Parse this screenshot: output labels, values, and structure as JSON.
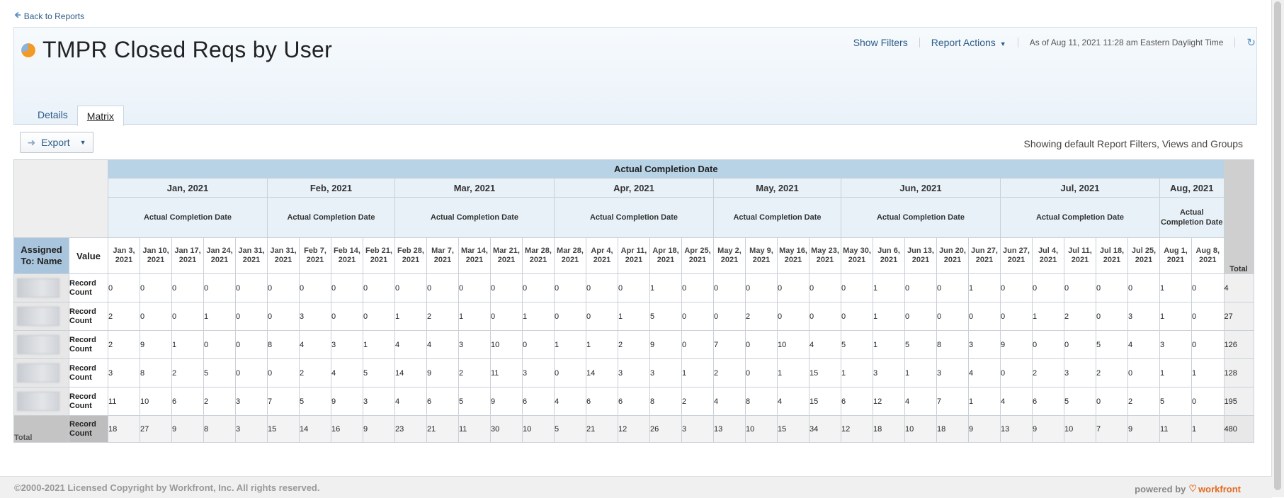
{
  "back_link": "Back to Reports",
  "report": {
    "title": "TMPR Closed Reqs by User",
    "show_filters": "Show Filters",
    "report_actions": "Report Actions",
    "as_of": "As of Aug 11, 2021 11:28 am Eastern Daylight Time"
  },
  "tabs": [
    {
      "label": "Details"
    },
    {
      "label": "Matrix",
      "active": true
    }
  ],
  "export_label": "Export",
  "showing_text": "Showing default Report Filters, Views and Groups",
  "matrix": {
    "group_header": "Actual Completion Date",
    "sub_header": "Actual Completion Date",
    "aug_sub_header": "Actual Completion Date",
    "assigned_to_label": "Assigned To: Name",
    "value_label": "Value",
    "total_col_label": "Total",
    "total_row_label": "Total",
    "record_count_label": "Record Count",
    "months": [
      {
        "label": "Jan, 2021",
        "span": 5
      },
      {
        "label": "Feb, 2021",
        "span": 4
      },
      {
        "label": "Mar, 2021",
        "span": 5
      },
      {
        "label": "Apr, 2021",
        "span": 5
      },
      {
        "label": "May, 2021",
        "span": 4
      },
      {
        "label": "Jun, 2021",
        "span": 5
      },
      {
        "label": "Jul, 2021",
        "span": 5
      },
      {
        "label": "Aug, 2021",
        "span": 2
      }
    ],
    "dates": [
      "Jan 3, 2021",
      "Jan 10, 2021",
      "Jan 17, 2021",
      "Jan 24, 2021",
      "Jan 31, 2021",
      "Jan 31, 2021",
      "Feb 7, 2021",
      "Feb 14, 2021",
      "Feb 21, 2021",
      "Feb 28, 2021",
      "Mar 7, 2021",
      "Mar 14, 2021",
      "Mar 21, 2021",
      "Mar 28, 2021",
      "Mar 28, 2021",
      "Apr 4, 2021",
      "Apr 11, 2021",
      "Apr 18, 2021",
      "Apr 25, 2021",
      "May 2, 2021",
      "May 9, 2021",
      "May 16, 2021",
      "May 23, 2021",
      "May 30, 2021",
      "Jun 6, 2021",
      "Jun 13, 2021",
      "Jun 20, 2021",
      "Jun 27, 2021",
      "Jun 27, 2021",
      "Jul 4, 2021",
      "Jul 11, 2021",
      "Jul 18, 2021",
      "Jul 25, 2021",
      "Aug 1, 2021",
      "Aug 8, 2021"
    ],
    "rows": [
      {
        "values": [
          "0",
          "0",
          "0",
          "0",
          "0",
          "0",
          "0",
          "0",
          "0",
          "0",
          "0",
          "0",
          "0",
          "0",
          "0",
          "0",
          "0",
          "1",
          "0",
          "0",
          "0",
          "0",
          "0",
          "0",
          "1",
          "0",
          "0",
          "1",
          "0",
          "0",
          "0",
          "0",
          "0",
          "1",
          "0"
        ],
        "total": "4"
      },
      {
        "values": [
          "2",
          "0",
          "0",
          "1",
          "0",
          "0",
          "3",
          "0",
          "0",
          "1",
          "2",
          "1",
          "0",
          "1",
          "0",
          "0",
          "1",
          "5",
          "0",
          "0",
          "2",
          "0",
          "0",
          "0",
          "1",
          "0",
          "0",
          "0",
          "0",
          "1",
          "2",
          "0",
          "3",
          "1",
          "0"
        ],
        "total": "27"
      },
      {
        "values": [
          "2",
          "9",
          "1",
          "0",
          "0",
          "8",
          "4",
          "3",
          "1",
          "4",
          "4",
          "3",
          "10",
          "0",
          "1",
          "1",
          "2",
          "9",
          "0",
          "7",
          "0",
          "10",
          "4",
          "5",
          "1",
          "5",
          "8",
          "3",
          "9",
          "0",
          "0",
          "5",
          "4",
          "3",
          "0"
        ],
        "total": "126"
      },
      {
        "values": [
          "3",
          "8",
          "2",
          "5",
          "0",
          "0",
          "2",
          "4",
          "5",
          "14",
          "9",
          "2",
          "11",
          "3",
          "0",
          "14",
          "3",
          "3",
          "1",
          "2",
          "0",
          "1",
          "15",
          "1",
          "3",
          "1",
          "3",
          "4",
          "0",
          "2",
          "3",
          "2",
          "0",
          "1",
          "1"
        ],
        "total": "128"
      },
      {
        "values": [
          "11",
          "10",
          "6",
          "2",
          "3",
          "7",
          "5",
          "9",
          "3",
          "4",
          "6",
          "5",
          "9",
          "6",
          "4",
          "6",
          "6",
          "8",
          "2",
          "4",
          "8",
          "4",
          "15",
          "6",
          "12",
          "4",
          "7",
          "1",
          "4",
          "6",
          "5",
          "0",
          "2",
          "5",
          "0"
        ],
        "total": "195"
      }
    ],
    "total_row": {
      "values": [
        "18",
        "27",
        "9",
        "8",
        "3",
        "15",
        "14",
        "16",
        "9",
        "23",
        "21",
        "11",
        "30",
        "10",
        "5",
        "21",
        "12",
        "26",
        "3",
        "13",
        "10",
        "15",
        "34",
        "12",
        "18",
        "10",
        "18",
        "9",
        "13",
        "9",
        "10",
        "7",
        "9",
        "11",
        "1"
      ],
      "total": "480"
    }
  },
  "footer": {
    "copyright": "©2000-2021 Licensed Copyright by Workfront, Inc. All rights reserved.",
    "powered_by": "powered by",
    "brand": "workfront"
  }
}
